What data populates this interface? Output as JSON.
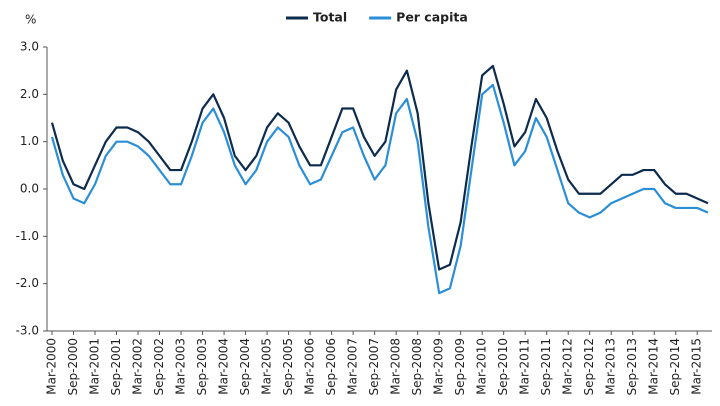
{
  "chart_data": {
    "type": "line",
    "y_label": "%",
    "categories": [
      "Mar-2000",
      null,
      "Sep-2000",
      null,
      "Mar-2001",
      null,
      "Sep-2001",
      null,
      "Mar-2002",
      null,
      "Sep-2002",
      null,
      "Mar-2003",
      null,
      "Sep-2003",
      null,
      "Mar-2004",
      null,
      "Sep-2004",
      null,
      "Mar-2005",
      null,
      "Sep-2005",
      null,
      "Mar-2006",
      null,
      "Sep-2006",
      null,
      "Mar-2007",
      null,
      "Sep-2007",
      null,
      "Mar-2008",
      null,
      "Sep-2008",
      null,
      "Mar-2009",
      null,
      "Sep-2009",
      null,
      "Mar-2010",
      null,
      "Sep-2010",
      null,
      "Mar-2011",
      null,
      "Sep-2011",
      null,
      "Mar-2012",
      null,
      "Sep-2012",
      null,
      "Mar-2013",
      null,
      "Sep-2013",
      null,
      "Mar-2014",
      null,
      "Sep-2014",
      null,
      "Mar-2015",
      null
    ],
    "series": [
      {
        "name": "Total",
        "color": "#0d2b4e",
        "values": [
          1.4,
          0.6,
          0.1,
          0.0,
          0.5,
          1.0,
          1.3,
          1.3,
          1.2,
          1.0,
          0.7,
          0.4,
          0.4,
          1.0,
          1.7,
          2.0,
          1.5,
          0.7,
          0.4,
          0.7,
          1.3,
          1.6,
          1.4,
          0.9,
          0.5,
          0.5,
          1.1,
          1.7,
          1.7,
          1.1,
          0.7,
          1.0,
          2.1,
          2.5,
          1.6,
          -0.3,
          -1.7,
          -1.6,
          -0.7,
          0.9,
          2.4,
          2.6,
          1.8,
          0.9,
          1.2,
          1.9,
          1.5,
          0.8,
          0.2,
          -0.1,
          -0.1,
          -0.1,
          0.1,
          0.3,
          0.3,
          0.4,
          0.4,
          0.1,
          -0.1,
          -0.1,
          -0.2,
          -0.3
        ]
      },
      {
        "name": "Per capita",
        "color": "#2a8ed8",
        "values": [
          1.1,
          0.3,
          -0.2,
          -0.3,
          0.1,
          0.7,
          1.0,
          1.0,
          0.9,
          0.7,
          0.4,
          0.1,
          0.1,
          0.7,
          1.4,
          1.7,
          1.2,
          0.5,
          0.1,
          0.4,
          1.0,
          1.3,
          1.1,
          0.5,
          0.1,
          0.2,
          0.7,
          1.2,
          1.3,
          0.7,
          0.2,
          0.5,
          1.6,
          1.9,
          1.0,
          -0.8,
          -2.2,
          -2.1,
          -1.2,
          0.4,
          2.0,
          2.2,
          1.4,
          0.5,
          0.8,
          1.5,
          1.1,
          0.4,
          -0.3,
          -0.5,
          -0.6,
          -0.5,
          -0.3,
          -0.2,
          -0.1,
          0.0,
          0.0,
          -0.3,
          -0.4,
          -0.4,
          -0.4,
          -0.5
        ]
      }
    ],
    "ylim": [
      -3,
      3
    ],
    "yticks": [
      {
        "value": -3,
        "label": "-3.0"
      },
      {
        "value": -2,
        "label": "-2.0"
      },
      {
        "value": -1,
        "label": "-1.0"
      },
      {
        "value": 0,
        "label": "0.0"
      },
      {
        "value": 1,
        "label": "1.0"
      },
      {
        "value": 2,
        "label": "2.0"
      },
      {
        "value": 3,
        "label": "3.0"
      }
    ],
    "legend": "top",
    "grid": false
  }
}
